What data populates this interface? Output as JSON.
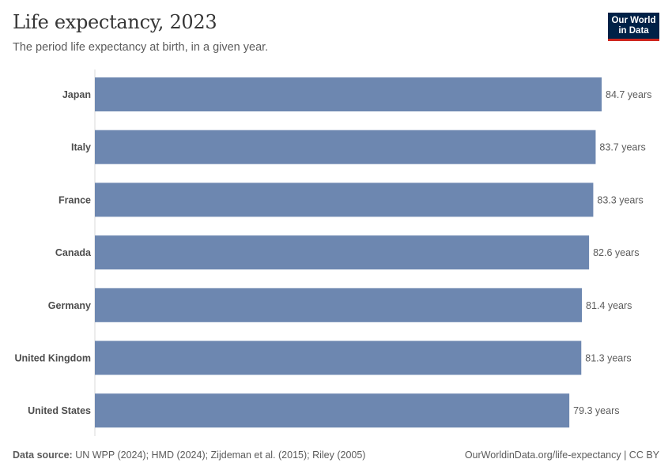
{
  "header": {
    "title": "Life expectancy, 2023",
    "subtitle": "The period life expectancy at birth, in a given year.",
    "logo_line1": "Our World",
    "logo_line2": "in Data"
  },
  "footer": {
    "source_label": "Data source:",
    "source_text": " UN WPP (2024); HMD (2024); Zijdeman et al. (2015); Riley (2005)",
    "link_text": "OurWorldinData.org/life-expectancy | CC BY"
  },
  "colors": {
    "bar": "#6d87b0",
    "axis": "#d9d9d9",
    "label": "#4d4d4d",
    "value_label": "#5b5b5b",
    "logo_bg": "#002147",
    "logo_accent": "#ce261e"
  },
  "chart_data": {
    "type": "bar",
    "orientation": "horizontal",
    "categories": [
      "Japan",
      "Italy",
      "France",
      "Canada",
      "Germany",
      "United Kingdom",
      "United States"
    ],
    "values": [
      84.7,
      83.7,
      83.3,
      82.6,
      81.4,
      81.3,
      79.3
    ],
    "value_labels": [
      "84.7 years",
      "83.7 years",
      "83.3 years",
      "82.6 years",
      "81.4 years",
      "81.3 years",
      "79.3 years"
    ],
    "unit": "years",
    "xlim": [
      0,
      84.7
    ],
    "grid": false
  }
}
